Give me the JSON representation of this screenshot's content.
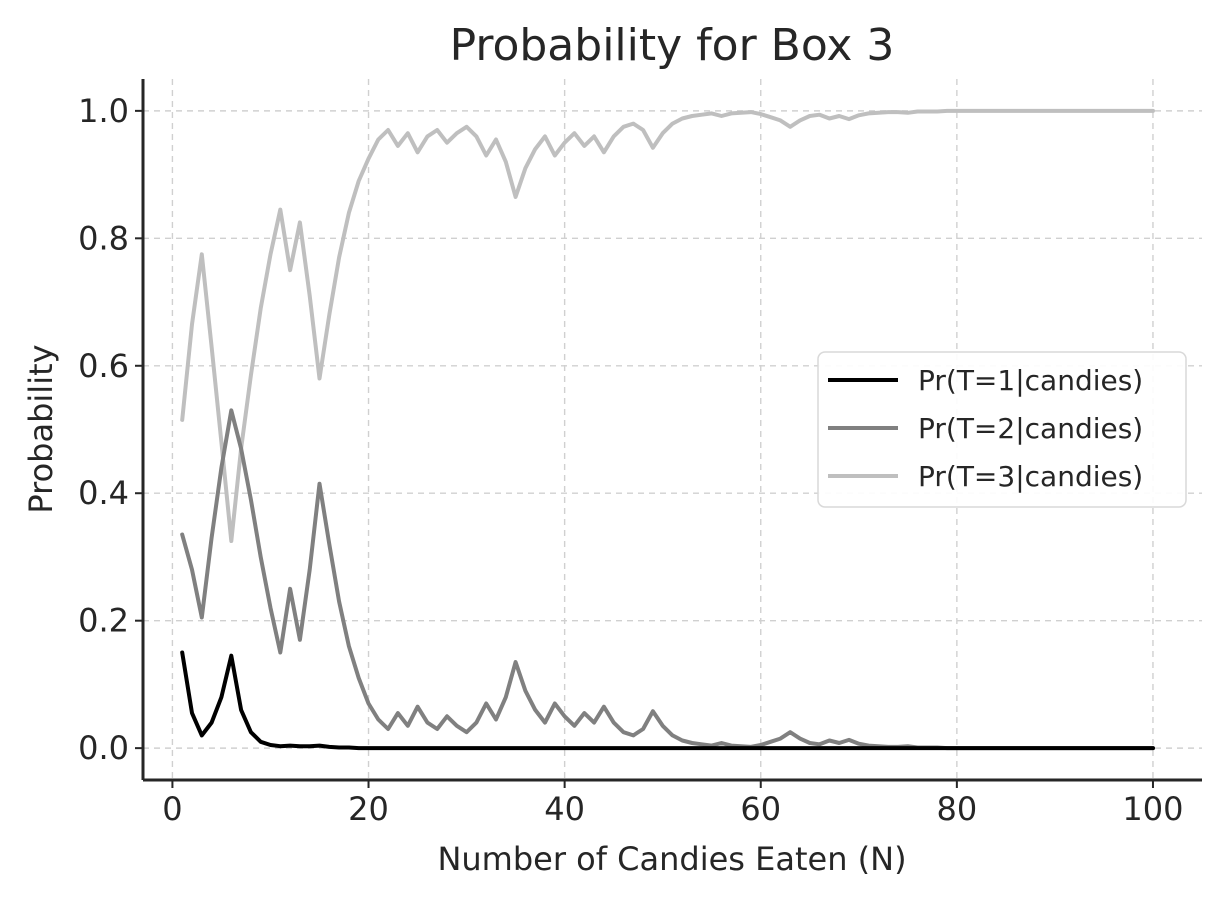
{
  "chart_data": {
    "type": "line",
    "title": "Probability for Box 3",
    "xlabel": "Number of Candies Eaten (N)",
    "ylabel": "Probability",
    "xlim": [
      -3,
      105
    ],
    "ylim": [
      -0.05,
      1.05
    ],
    "xticks": [
      0,
      20,
      40,
      60,
      80,
      100
    ],
    "yticks": [
      0.0,
      0.2,
      0.4,
      0.6,
      0.8,
      1.0
    ],
    "xtick_labels": [
      "0",
      "20",
      "40",
      "60",
      "80",
      "100"
    ],
    "ytick_labels": [
      "0.0",
      "0.2",
      "0.4",
      "0.6",
      "0.8",
      "1.0"
    ],
    "grid": true,
    "legend_position": "center-right",
    "series": [
      {
        "name": "Pr(T=1|candies)",
        "color": "#000000",
        "x": [
          1,
          2,
          3,
          4,
          5,
          6,
          7,
          8,
          9,
          10,
          11,
          12,
          13,
          14,
          15,
          16,
          17,
          18,
          19,
          20,
          25,
          30,
          40,
          50,
          60,
          70,
          80,
          90,
          100
        ],
        "y": [
          0.15,
          0.055,
          0.02,
          0.04,
          0.08,
          0.145,
          0.06,
          0.025,
          0.01,
          0.005,
          0.003,
          0.004,
          0.003,
          0.003,
          0.004,
          0.002,
          0.001,
          0.001,
          0.0,
          0.0,
          0.0,
          0.0,
          0.0,
          0.0,
          0.0,
          0.0,
          0.0,
          0.0,
          0.0
        ]
      },
      {
        "name": "Pr(T=2|candies)",
        "color": "#808080",
        "x": [
          1,
          2,
          3,
          4,
          5,
          6,
          7,
          8,
          9,
          10,
          11,
          12,
          13,
          14,
          15,
          16,
          17,
          18,
          19,
          20,
          21,
          22,
          23,
          24,
          25,
          26,
          27,
          28,
          29,
          30,
          31,
          32,
          33,
          34,
          35,
          36,
          37,
          38,
          39,
          40,
          41,
          42,
          43,
          44,
          45,
          46,
          47,
          48,
          49,
          50,
          51,
          52,
          53,
          54,
          55,
          56,
          57,
          58,
          59,
          60,
          61,
          62,
          63,
          64,
          65,
          66,
          67,
          68,
          69,
          70,
          71,
          72,
          73,
          74,
          75,
          76,
          77,
          78,
          79,
          80,
          85,
          90,
          95,
          100
        ],
        "y": [
          0.335,
          0.28,
          0.205,
          0.33,
          0.44,
          0.53,
          0.47,
          0.39,
          0.3,
          0.22,
          0.15,
          0.25,
          0.17,
          0.28,
          0.415,
          0.32,
          0.23,
          0.16,
          0.11,
          0.07,
          0.045,
          0.03,
          0.055,
          0.035,
          0.065,
          0.04,
          0.03,
          0.05,
          0.035,
          0.025,
          0.04,
          0.07,
          0.045,
          0.08,
          0.135,
          0.09,
          0.06,
          0.04,
          0.07,
          0.05,
          0.035,
          0.055,
          0.04,
          0.065,
          0.04,
          0.025,
          0.02,
          0.03,
          0.058,
          0.035,
          0.02,
          0.012,
          0.008,
          0.006,
          0.004,
          0.008,
          0.004,
          0.003,
          0.002,
          0.005,
          0.01,
          0.015,
          0.025,
          0.015,
          0.008,
          0.006,
          0.012,
          0.008,
          0.013,
          0.007,
          0.004,
          0.003,
          0.002,
          0.002,
          0.003,
          0.001,
          0.001,
          0.001,
          0.0,
          0.0,
          0.0,
          0.0,
          0.0,
          0.0
        ]
      },
      {
        "name": "Pr(T=3|candies)",
        "color": "#bfbfbf",
        "x": [
          1,
          2,
          3,
          4,
          5,
          6,
          7,
          8,
          9,
          10,
          11,
          12,
          13,
          14,
          15,
          16,
          17,
          18,
          19,
          20,
          21,
          22,
          23,
          24,
          25,
          26,
          27,
          28,
          29,
          30,
          31,
          32,
          33,
          34,
          35,
          36,
          37,
          38,
          39,
          40,
          41,
          42,
          43,
          44,
          45,
          46,
          47,
          48,
          49,
          50,
          51,
          52,
          53,
          54,
          55,
          56,
          57,
          58,
          59,
          60,
          61,
          62,
          63,
          64,
          65,
          66,
          67,
          68,
          69,
          70,
          71,
          72,
          73,
          74,
          75,
          76,
          77,
          78,
          79,
          80,
          85,
          90,
          95,
          100
        ],
        "y": [
          0.515,
          0.665,
          0.775,
          0.63,
          0.48,
          0.325,
          0.47,
          0.585,
          0.69,
          0.775,
          0.845,
          0.75,
          0.825,
          0.71,
          0.58,
          0.68,
          0.77,
          0.84,
          0.89,
          0.925,
          0.955,
          0.97,
          0.945,
          0.965,
          0.935,
          0.96,
          0.97,
          0.95,
          0.965,
          0.975,
          0.96,
          0.93,
          0.955,
          0.92,
          0.865,
          0.91,
          0.94,
          0.96,
          0.93,
          0.95,
          0.965,
          0.945,
          0.96,
          0.935,
          0.96,
          0.975,
          0.98,
          0.97,
          0.942,
          0.965,
          0.98,
          0.988,
          0.992,
          0.994,
          0.996,
          0.992,
          0.996,
          0.997,
          0.998,
          0.995,
          0.99,
          0.985,
          0.975,
          0.985,
          0.992,
          0.994,
          0.988,
          0.992,
          0.987,
          0.993,
          0.996,
          0.997,
          0.998,
          0.998,
          0.997,
          0.999,
          0.999,
          0.999,
          1.0,
          1.0,
          1.0,
          1.0,
          1.0,
          1.0
        ]
      }
    ]
  }
}
